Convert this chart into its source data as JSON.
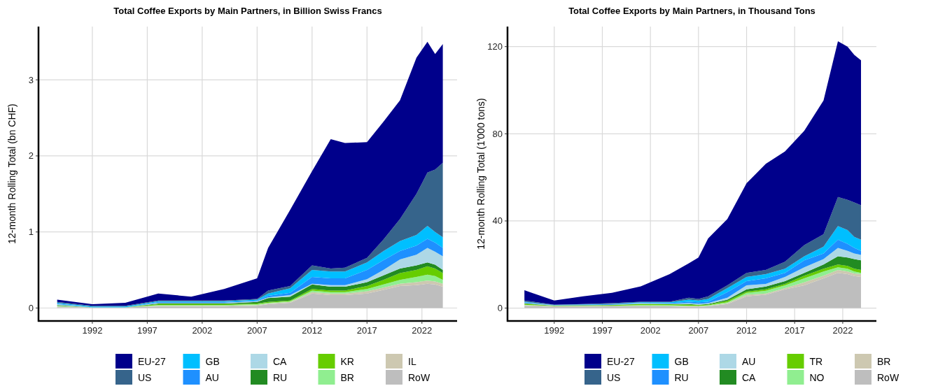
{
  "chart_data": [
    {
      "type": "area",
      "stacked": true,
      "title": "Total Coffee Exports by Main Partners, in Billion Swiss Francs",
      "ylabel": "12-month Rolling Total (bn CHF)",
      "x": [
        1988.8,
        1992,
        1995,
        1998,
        2001,
        2004,
        2007,
        2008,
        2010,
        2012,
        2013.7,
        2015,
        2017,
        2018.5,
        2020,
        2021.5,
        2022.5,
        2023.2,
        2023.9
      ],
      "xlim": [
        1987.1,
        2025.2
      ],
      "xticks": [
        1992,
        1997,
        2002,
        2007,
        2012,
        2017,
        2022
      ],
      "ylim": [
        -0.17,
        3.7
      ],
      "yticks": [
        0,
        1,
        2,
        3
      ],
      "grid": true,
      "legend": "bottom",
      "series": [
        {
          "name": "RoW",
          "color": "#bebebe",
          "values": [
            0.01,
            0.01,
            0.01,
            0.02,
            0.02,
            0.02,
            0.03,
            0.05,
            0.07,
            0.19,
            0.17,
            0.17,
            0.19,
            0.24,
            0.29,
            0.3,
            0.32,
            0.31,
            0.28
          ]
        },
        {
          "name": "IL",
          "color": "#cdc8b1",
          "values": [
            0.01,
            0,
            0,
            0.01,
            0.01,
            0.01,
            0.01,
            0.01,
            0.01,
            0.02,
            0.02,
            0.02,
            0.03,
            0.03,
            0.03,
            0.04,
            0.04,
            0.04,
            0.04
          ]
        },
        {
          "name": "BR",
          "color": "#90ee90",
          "values": [
            0.01,
            0,
            0,
            0.01,
            0.01,
            0.01,
            0.01,
            0.01,
            0.01,
            0.02,
            0.02,
            0.02,
            0.03,
            0.04,
            0.05,
            0.07,
            0.08,
            0.07,
            0.05
          ]
        },
        {
          "name": "KR",
          "color": "#66cd00",
          "values": [
            0,
            0,
            0,
            0.01,
            0.01,
            0.01,
            0.01,
            0.01,
            0.01,
            0.02,
            0.02,
            0.02,
            0.04,
            0.06,
            0.09,
            0.09,
            0.11,
            0.1,
            0.09
          ]
        },
        {
          "name": "RU",
          "color": "#228b22",
          "values": [
            0.01,
            0,
            0,
            0.01,
            0.01,
            0.01,
            0.02,
            0.05,
            0.05,
            0.06,
            0.05,
            0.05,
            0.05,
            0.06,
            0.06,
            0.06,
            0.05,
            0.05,
            0.04
          ]
        },
        {
          "name": "CA",
          "color": "#add8e6",
          "values": [
            0.01,
            0,
            0,
            0.01,
            0.01,
            0.01,
            0.01,
            0.01,
            0.02,
            0.01,
            0.02,
            0.02,
            0.04,
            0.07,
            0.12,
            0.14,
            0.19,
            0.17,
            0.18
          ]
        },
        {
          "name": "AU",
          "color": "#1e90ff",
          "values": [
            0.01,
            0,
            0,
            0.01,
            0.01,
            0.01,
            0.01,
            0.02,
            0.03,
            0.09,
            0.09,
            0.09,
            0.12,
            0.13,
            0.11,
            0.12,
            0.12,
            0.12,
            0.11
          ]
        },
        {
          "name": "GB",
          "color": "#00bfff",
          "values": [
            0.01,
            0.01,
            0.01,
            0.01,
            0.01,
            0.01,
            0.01,
            0.03,
            0.06,
            0.09,
            0.09,
            0.09,
            0.1,
            0.12,
            0.13,
            0.14,
            0.17,
            0.14,
            0.14
          ]
        },
        {
          "name": "US",
          "color": "#36648b",
          "values": [
            0.01,
            0.01,
            0.01,
            0.01,
            0.01,
            0.01,
            0.01,
            0.04,
            0.03,
            0.06,
            0.04,
            0.05,
            0.06,
            0.15,
            0.29,
            0.54,
            0.7,
            0.82,
            0.98
          ]
        },
        {
          "name": "EU-27",
          "color": "#00008b",
          "values": [
            0.03,
            0.02,
            0.04,
            0.09,
            0.05,
            0.15,
            0.27,
            0.56,
            1.0,
            1.24,
            1.7,
            1.64,
            1.52,
            1.55,
            1.56,
            1.79,
            1.72,
            1.52,
            1.56
          ]
        }
      ]
    },
    {
      "type": "area",
      "stacked": true,
      "title": "Total Coffee Exports by Main Partners, in Thousand Tons",
      "ylabel": "12-month Rolling Total (1'000 tons)",
      "x": [
        1988.9,
        1992,
        1995,
        1998,
        2001,
        2004,
        2006,
        2007,
        2008,
        2010,
        2012,
        2014,
        2016,
        2018,
        2020,
        2021.5,
        2022.5,
        2023.2,
        2023.9
      ],
      "xlim": [
        1987.14,
        2025.5
      ],
      "xticks": [
        1992,
        1997,
        2002,
        2007,
        2012,
        2017,
        2022
      ],
      "ylim": [
        -5.9,
        129.2
      ],
      "yticks": [
        0,
        40,
        80,
        120
      ],
      "grid": true,
      "legend": "bottom",
      "series": [
        {
          "name": "RoW",
          "color": "#bebebe",
          "values": [
            1.1,
            0.6,
            0.7,
            0.8,
            0.9,
            0.8,
            0.6,
            0.6,
            0.8,
            1.9,
            5.4,
            6.1,
            8.6,
            10.5,
            13.7,
            16.2,
            15.6,
            14.7,
            14.3
          ]
        },
        {
          "name": "BR",
          "color": "#cdc8b1",
          "values": [
            0.3,
            0.2,
            0.2,
            0.2,
            0.2,
            0.2,
            0.3,
            0.3,
            0.2,
            0.4,
            0.7,
            0.6,
            0.6,
            1.3,
            1.2,
            1.3,
            1.2,
            1.2,
            1.3
          ]
        },
        {
          "name": "NO",
          "color": "#90ee90",
          "values": [
            0.2,
            0.1,
            0.1,
            0.1,
            0.3,
            0.3,
            0.2,
            0.1,
            0.3,
            0.4,
            0.9,
            1.3,
            1.3,
            1.9,
            1.9,
            1.2,
            1.3,
            0.9,
            0.6
          ]
        },
        {
          "name": "TR",
          "color": "#66cd00",
          "values": [
            0.4,
            0.2,
            0.2,
            0.3,
            0.5,
            0.5,
            0.5,
            0.4,
            0.3,
            0.6,
            0.6,
            0.6,
            0.6,
            1.2,
            1.3,
            1.3,
            1.3,
            1.3,
            1.3
          ]
        },
        {
          "name": "CA",
          "color": "#228b22",
          "values": [
            0.2,
            0.1,
            0.1,
            0.1,
            0.1,
            0.1,
            0.3,
            0.2,
            0.3,
            0.6,
            1.0,
            1.3,
            1.3,
            1.3,
            1.9,
            3.8,
            3.8,
            4.4,
            4.4
          ]
        },
        {
          "name": "AU",
          "color": "#add8e6",
          "values": [
            0.2,
            0.1,
            0.1,
            0.1,
            0.2,
            0.1,
            0.4,
            0.4,
            0.4,
            0.9,
            1.9,
            1.2,
            1.9,
            2.5,
            2.5,
            3.8,
            3.1,
            2.6,
            2.5
          ]
        },
        {
          "name": "RU",
          "color": "#1e90ff",
          "values": [
            0.3,
            0.1,
            0.2,
            0.3,
            0.2,
            0.3,
            0.6,
            0.7,
            0.6,
            2.5,
            1.9,
            2.6,
            1.9,
            3.2,
            2.6,
            3.8,
            3.2,
            2.5,
            1.9
          ]
        },
        {
          "name": "GB",
          "color": "#00bfff",
          "values": [
            0.2,
            0.1,
            0.1,
            0.1,
            0.3,
            0.4,
            1.0,
            0.8,
            1.3,
            1.9,
            1.9,
            1.9,
            1.9,
            1.9,
            3.1,
            6.3,
            6.3,
            5.1,
            5.1
          ]
        },
        {
          "name": "US",
          "color": "#36648b",
          "values": [
            0.6,
            0.1,
            0.2,
            0.3,
            0.2,
            0.2,
            0.9,
            0.7,
            1.2,
            1.3,
            1.9,
            1.9,
            3.2,
            5.1,
            5.7,
            13.3,
            13.9,
            15.8,
            15.8
          ]
        },
        {
          "name": "EU-27",
          "color": "#00008b",
          "values": [
            4.7,
            1.9,
            3.5,
            4.7,
            7.1,
            12.7,
            15.8,
            19.0,
            26.6,
            30.4,
            41.1,
            48.7,
            50.6,
            52.5,
            61.4,
            71.5,
            70.3,
            67.7,
            66.5
          ]
        }
      ]
    }
  ]
}
